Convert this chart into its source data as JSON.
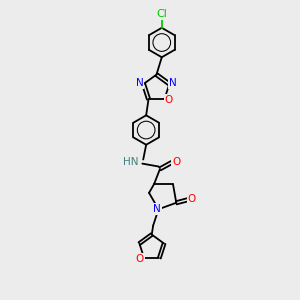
{
  "background_color": "#ececec",
  "bond_color": "#000000",
  "N_color": "#0000ff",
  "O_color": "#ff0000",
  "Cl_color": "#00cc00",
  "H_color": "#408080",
  "font_size": 7.5,
  "figsize": [
    3.0,
    3.0
  ],
  "dpi": 100,
  "lw": 1.3,
  "xlim": [
    0,
    10
  ],
  "ylim": [
    0,
    10
  ]
}
